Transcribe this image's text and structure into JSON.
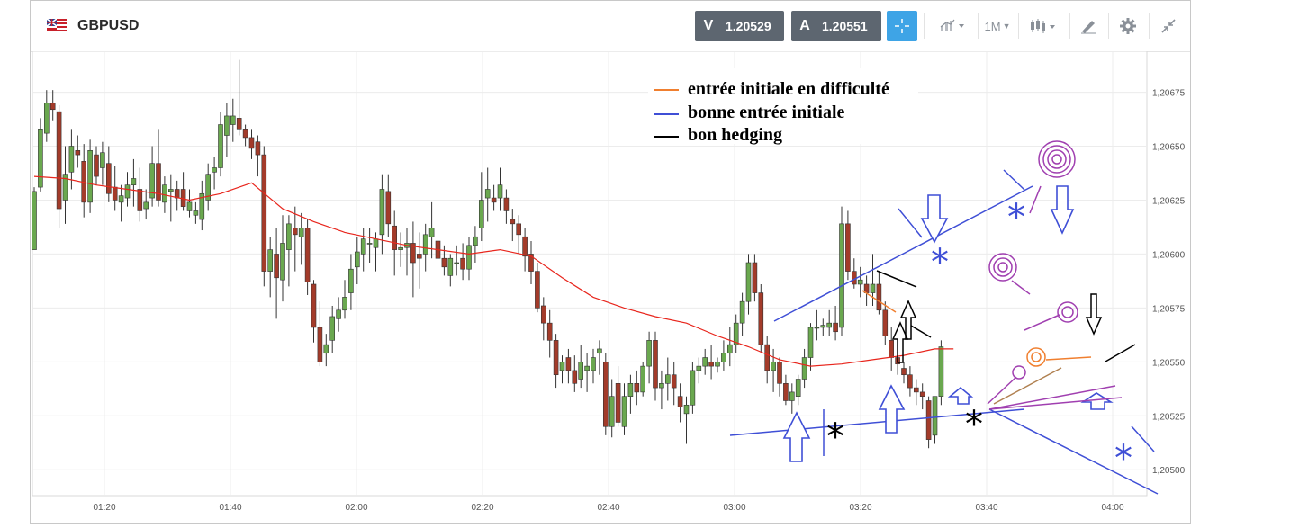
{
  "instrument": {
    "symbol": "GBPUSD",
    "flag": "uk-us-flag"
  },
  "quotes": {
    "bid": {
      "label": "V",
      "value": "1.20529"
    },
    "ask": {
      "label": "A",
      "value": "1.20551"
    }
  },
  "toolbar": {
    "timeframe": "1M",
    "tools": [
      "crosshair-icon",
      "chart-style-icon",
      "timeframe-dropdown",
      "candlestick-icon",
      "draw-icon",
      "gear-icon",
      "collapse-icon"
    ]
  },
  "colors": {
    "bull": "#6aa84f",
    "bear": "#a33b2a",
    "ma": "#e8261d",
    "blue_ann": "#3f4fd6",
    "orange_ann": "#f07f2f",
    "purple_ann": "#a03fb0",
    "black_ann": "#000000"
  },
  "annotations": {
    "legend": [
      {
        "text": "entrée initiale en difficulté",
        "color": "#f07f2f"
      },
      {
        "text": "bonne entrée initiale",
        "color": "#3f4fd6"
      },
      {
        "text": "bon hedging",
        "color": "#000000"
      }
    ]
  },
  "chart_data": {
    "type": "candlestick",
    "y_ticks": [
      "1,20500",
      "1,20525",
      "1,20550",
      "1,20575",
      "1,20600",
      "1,20625",
      "1,20650",
      "1,20675"
    ],
    "y_tick_values": [
      1.205,
      1.20525,
      1.2055,
      1.20575,
      1.206,
      1.20625,
      1.2065,
      1.20675
    ],
    "x_ticks": [
      "01:20",
      "01:40",
      "02:00",
      "02:20",
      "02:40",
      "03:00",
      "03:20",
      "03:40",
      "04:00"
    ],
    "ylim": [
      1.20488,
      1.20694
    ],
    "grid": true,
    "series": [
      {
        "name": "GBPUSD",
        "kind": "ohlc",
        "ohlc": [
          [
            1.20602,
            1.20631,
            1.20602,
            1.20629
          ],
          [
            1.20631,
            1.20663,
            1.20629,
            1.20658
          ],
          [
            1.20656,
            1.20676,
            1.20652,
            1.2067
          ],
          [
            1.2067,
            1.20676,
            1.20662,
            1.20667
          ],
          [
            1.20666,
            1.20669,
            1.20612,
            1.20621
          ],
          [
            1.20625,
            1.2065,
            1.20614,
            1.20637
          ],
          [
            1.20638,
            1.20658,
            1.2063,
            1.2065
          ],
          [
            1.20648,
            1.20655,
            1.2064,
            1.20646
          ],
          [
            1.20643,
            1.20651,
            1.20617,
            1.20624
          ],
          [
            1.20624,
            1.20653,
            1.20619,
            1.20648
          ],
          [
            1.20646,
            1.2065,
            1.20632,
            1.20636
          ],
          [
            1.2064,
            1.20652,
            1.20632,
            1.20647
          ],
          [
            1.20642,
            1.2065,
            1.20624,
            1.20628
          ],
          [
            1.20631,
            1.20641,
            1.2062,
            1.20625
          ],
          [
            1.20624,
            1.20632,
            1.20615,
            1.20627
          ],
          [
            1.20626,
            1.20638,
            1.20622,
            1.20632
          ],
          [
            1.20632,
            1.20644,
            1.20622,
            1.20635
          ],
          [
            1.2063,
            1.2064,
            1.20615,
            1.2062
          ],
          [
            1.20621,
            1.2063,
            1.20616,
            1.20624
          ],
          [
            1.20626,
            1.2065,
            1.20622,
            1.20642
          ],
          [
            1.20642,
            1.20658,
            1.20622,
            1.20625
          ],
          [
            1.20624,
            1.20636,
            1.20619,
            1.20632
          ],
          [
            1.20629,
            1.20637,
            1.20615,
            1.2063
          ],
          [
            1.2063,
            1.20634,
            1.2062,
            1.20626
          ],
          [
            1.2063,
            1.20638,
            1.2062,
            1.20622
          ],
          [
            1.2062,
            1.2063,
            1.20617,
            1.20624
          ],
          [
            1.20618,
            1.20624,
            1.20614,
            1.2062
          ],
          [
            1.20616,
            1.20634,
            1.20611,
            1.20628
          ],
          [
            1.20625,
            1.20642,
            1.2062,
            1.20637
          ],
          [
            1.20638,
            1.20645,
            1.2063,
            1.2064
          ],
          [
            1.2064,
            1.20666,
            1.20636,
            1.2066
          ],
          [
            1.20655,
            1.2067,
            1.20645,
            1.20664
          ],
          [
            1.2066,
            1.20672,
            1.20652,
            1.20664
          ],
          [
            1.20663,
            1.2069,
            1.20655,
            1.20658
          ],
          [
            1.20658,
            1.2066,
            1.2065,
            1.20654
          ],
          [
            1.20654,
            1.20658,
            1.20644,
            1.20649
          ],
          [
            1.20652,
            1.20655,
            1.20636,
            1.20646
          ],
          [
            1.20646,
            1.2065,
            1.20585,
            1.20592
          ],
          [
            1.20592,
            1.20608,
            1.2058,
            1.20602
          ],
          [
            1.206,
            1.20612,
            1.2057,
            1.20589
          ],
          [
            1.20588,
            1.20618,
            1.20578,
            1.20605
          ],
          [
            1.20602,
            1.20618,
            1.20585,
            1.20614
          ],
          [
            1.20612,
            1.20622,
            1.20592,
            1.20609
          ],
          [
            1.20608,
            1.20619,
            1.20595,
            1.20612
          ],
          [
            1.20612,
            1.20616,
            1.20581,
            1.20587
          ],
          [
            1.20586,
            1.20588,
            1.20559,
            1.20566
          ],
          [
            1.20566,
            1.20578,
            1.20548,
            1.2055
          ],
          [
            1.20554,
            1.20563,
            1.20548,
            1.20558
          ],
          [
            1.2056,
            1.20576,
            1.20554,
            1.20571
          ],
          [
            1.2057,
            1.2058,
            1.20564,
            1.20574
          ],
          [
            1.20574,
            1.20588,
            1.2057,
            1.2058
          ],
          [
            1.20582,
            1.206,
            1.20574,
            1.20593
          ],
          [
            1.20594,
            1.20608,
            1.20586,
            1.20601
          ],
          [
            1.206,
            1.20612,
            1.20592,
            1.20607
          ],
          [
            1.20605,
            1.20612,
            1.20596,
            1.20605
          ],
          [
            1.20603,
            1.2061,
            1.20592,
            1.20607
          ],
          [
            1.20609,
            1.20637,
            1.206,
            1.2063
          ],
          [
            1.20629,
            1.20637,
            1.20608,
            1.20614
          ],
          [
            1.20613,
            1.2062,
            1.2059,
            1.20602
          ],
          [
            1.20602,
            1.2061,
            1.20594,
            1.20603
          ],
          [
            1.20603,
            1.20612,
            1.2059,
            1.20605
          ],
          [
            1.20605,
            1.20615,
            1.2058,
            1.20596
          ],
          [
            1.206,
            1.2061,
            1.20584,
            1.20598
          ],
          [
            1.206,
            1.20614,
            1.20592,
            1.20609
          ],
          [
            1.20608,
            1.20624,
            1.20598,
            1.20612
          ],
          [
            1.20606,
            1.20614,
            1.20592,
            1.20598
          ],
          [
            1.20598,
            1.20604,
            1.2059,
            1.20594
          ],
          [
            1.2059,
            1.206,
            1.20585,
            1.20598
          ],
          [
            1.20596,
            1.20604,
            1.2059,
            1.20596
          ],
          [
            1.20598,
            1.20605,
            1.20588,
            1.20593
          ],
          [
            1.20593,
            1.20608,
            1.20588,
            1.20604
          ],
          [
            1.20604,
            1.20613,
            1.20596,
            1.20608
          ],
          [
            1.20612,
            1.20638,
            1.20606,
            1.20625
          ],
          [
            1.20626,
            1.2064,
            1.20615,
            1.2063
          ],
          [
            1.20626,
            1.20632,
            1.2062,
            1.20624
          ],
          [
            1.20626,
            1.2064,
            1.2062,
            1.20632
          ],
          [
            1.20626,
            1.2063,
            1.20614,
            1.2062
          ],
          [
            1.20616,
            1.20621,
            1.20606,
            1.20614
          ],
          [
            1.20614,
            1.20618,
            1.206,
            1.20609
          ],
          [
            1.20608,
            1.20612,
            1.20592,
            1.20599
          ],
          [
            1.206,
            1.20606,
            1.20586,
            1.20592
          ],
          [
            1.20592,
            1.20596,
            1.20573,
            1.20575
          ],
          [
            1.20576,
            1.2058,
            1.2056,
            1.20568
          ],
          [
            1.20568,
            1.20574,
            1.20552,
            1.2056
          ],
          [
            1.2056,
            1.20563,
            1.20538,
            1.20544
          ],
          [
            1.20546,
            1.20553,
            1.2054,
            1.2055
          ],
          [
            1.20552,
            1.20556,
            1.2054,
            1.20546
          ],
          [
            1.20546,
            1.20553,
            1.20536,
            1.2054
          ],
          [
            1.20542,
            1.20558,
            1.20538,
            1.2055
          ],
          [
            1.20546,
            1.20554,
            1.20536,
            1.20548
          ],
          [
            1.20546,
            1.20556,
            1.2054,
            1.20552
          ],
          [
            1.20554,
            1.2056,
            1.20544,
            1.20556
          ],
          [
            1.2055,
            1.20554,
            1.20516,
            1.2052
          ],
          [
            1.2052,
            1.20542,
            1.20515,
            1.20534
          ],
          [
            1.2054,
            1.20548,
            1.2052,
            1.20522
          ],
          [
            1.2052,
            1.2054,
            1.20516,
            1.20534
          ],
          [
            1.20534,
            1.20544,
            1.20526,
            1.2054
          ],
          [
            1.2054,
            1.20546,
            1.2053,
            1.20536
          ],
          [
            1.20536,
            1.2055,
            1.20534,
            1.20548
          ],
          [
            1.20548,
            1.20564,
            1.2054,
            1.2056
          ],
          [
            1.2056,
            1.20564,
            1.20532,
            1.20538
          ],
          [
            1.20538,
            1.20546,
            1.20528,
            1.2054
          ],
          [
            1.2054,
            1.20552,
            1.20532,
            1.20544
          ],
          [
            1.20544,
            1.2055,
            1.2053,
            1.20538
          ],
          [
            1.20534,
            1.2054,
            1.20522,
            1.20529
          ],
          [
            1.20526,
            1.20534,
            1.20512,
            1.2053
          ],
          [
            1.2053,
            1.2055,
            1.20526,
            1.20546
          ],
          [
            1.20546,
            1.20552,
            1.2054,
            1.20548
          ],
          [
            1.20548,
            1.20556,
            1.20544,
            1.20552
          ],
          [
            1.2055,
            1.20558,
            1.20542,
            1.20548
          ],
          [
            1.20548,
            1.20552,
            1.20545,
            1.2055
          ],
          [
            1.2055,
            1.2056,
            1.20546,
            1.20554
          ],
          [
            1.20554,
            1.20566,
            1.20548,
            1.20558
          ],
          [
            1.20558,
            1.20572,
            1.20554,
            1.20568
          ],
          [
            1.20568,
            1.20582,
            1.20562,
            1.20578
          ],
          [
            1.20578,
            1.206,
            1.20572,
            1.20596
          ],
          [
            1.20596,
            1.206,
            1.20578,
            1.20582
          ],
          [
            1.20582,
            1.20586,
            1.20554,
            1.20558
          ],
          [
            1.20558,
            1.20562,
            1.2054,
            1.20546
          ],
          [
            1.20546,
            1.20556,
            1.20536,
            1.2055
          ],
          [
            1.2055,
            1.20552,
            1.20534,
            1.2054
          ],
          [
            1.2054,
            1.20544,
            1.2053,
            1.20532
          ],
          [
            1.20532,
            1.2054,
            1.20526,
            1.20536
          ],
          [
            1.20534,
            1.20544,
            1.2053,
            1.20542
          ],
          [
            1.20542,
            1.20556,
            1.20538,
            1.20552
          ],
          [
            1.20552,
            1.20568,
            1.20546,
            1.20566
          ],
          [
            1.20566,
            1.20574,
            1.2056,
            1.20566
          ],
          [
            1.20566,
            1.2057,
            1.20562,
            1.20567
          ],
          [
            1.20566,
            1.20574,
            1.20562,
            1.20568
          ],
          [
            1.20568,
            1.20576,
            1.2056,
            1.20564
          ],
          [
            1.20566,
            1.20622,
            1.20562,
            1.20614
          ],
          [
            1.20614,
            1.2062,
            1.20588,
            1.20592
          ],
          [
            1.20592,
            1.20598,
            1.20584,
            1.20586
          ],
          [
            1.20586,
            1.20594,
            1.2058,
            1.20588
          ],
          [
            1.20586,
            1.2059,
            1.20576,
            1.20582
          ],
          [
            1.20582,
            1.206,
            1.20576,
            1.20586
          ],
          [
            1.20586,
            1.20592,
            1.20572,
            1.20574
          ],
          [
            1.20574,
            1.20578,
            1.20558,
            1.20562
          ],
          [
            1.2056,
            1.20566,
            1.20546,
            1.20552
          ],
          [
            1.20552,
            1.20554,
            1.20544,
            1.20549
          ],
          [
            1.20547,
            1.2055,
            1.2054,
            1.20544
          ],
          [
            1.20544,
            1.20548,
            1.20534,
            1.20538
          ],
          [
            1.20538,
            1.20542,
            1.2053,
            1.20536
          ],
          [
            1.20536,
            1.2054,
            1.20528,
            1.20534
          ],
          [
            1.20532,
            1.20534,
            1.2051,
            1.20514
          ],
          [
            1.20516,
            1.20534,
            1.20512,
            1.20534
          ],
          [
            1.20534,
            1.2056,
            1.2053,
            1.20557
          ]
        ]
      },
      {
        "name": "MA",
        "kind": "line",
        "points": [
          [
            0,
            1.20636
          ],
          [
            5,
            1.20635
          ],
          [
            10,
            1.20632
          ],
          [
            15,
            1.2063
          ],
          [
            20,
            1.20628
          ],
          [
            25,
            1.20625
          ],
          [
            30,
            1.20628
          ],
          [
            35,
            1.20633
          ],
          [
            40,
            1.20621
          ],
          [
            45,
            1.20615
          ],
          [
            50,
            1.2061
          ],
          [
            55,
            1.20607
          ],
          [
            60,
            1.20604
          ],
          [
            65,
            1.20602
          ],
          [
            70,
            1.206
          ],
          [
            75,
            1.20602
          ],
          [
            80,
            1.20599
          ],
          [
            85,
            1.20589
          ],
          [
            90,
            1.2058
          ],
          [
            95,
            1.20575
          ],
          [
            100,
            1.20571
          ],
          [
            105,
            1.20568
          ],
          [
            110,
            1.20562
          ],
          [
            115,
            1.20557
          ],
          [
            120,
            1.20551
          ],
          [
            125,
            1.20548
          ],
          [
            130,
            1.20549
          ],
          [
            135,
            1.20551
          ],
          [
            140,
            1.20553
          ],
          [
            145,
            1.20556
          ],
          [
            148,
            1.20556
          ]
        ]
      }
    ]
  }
}
